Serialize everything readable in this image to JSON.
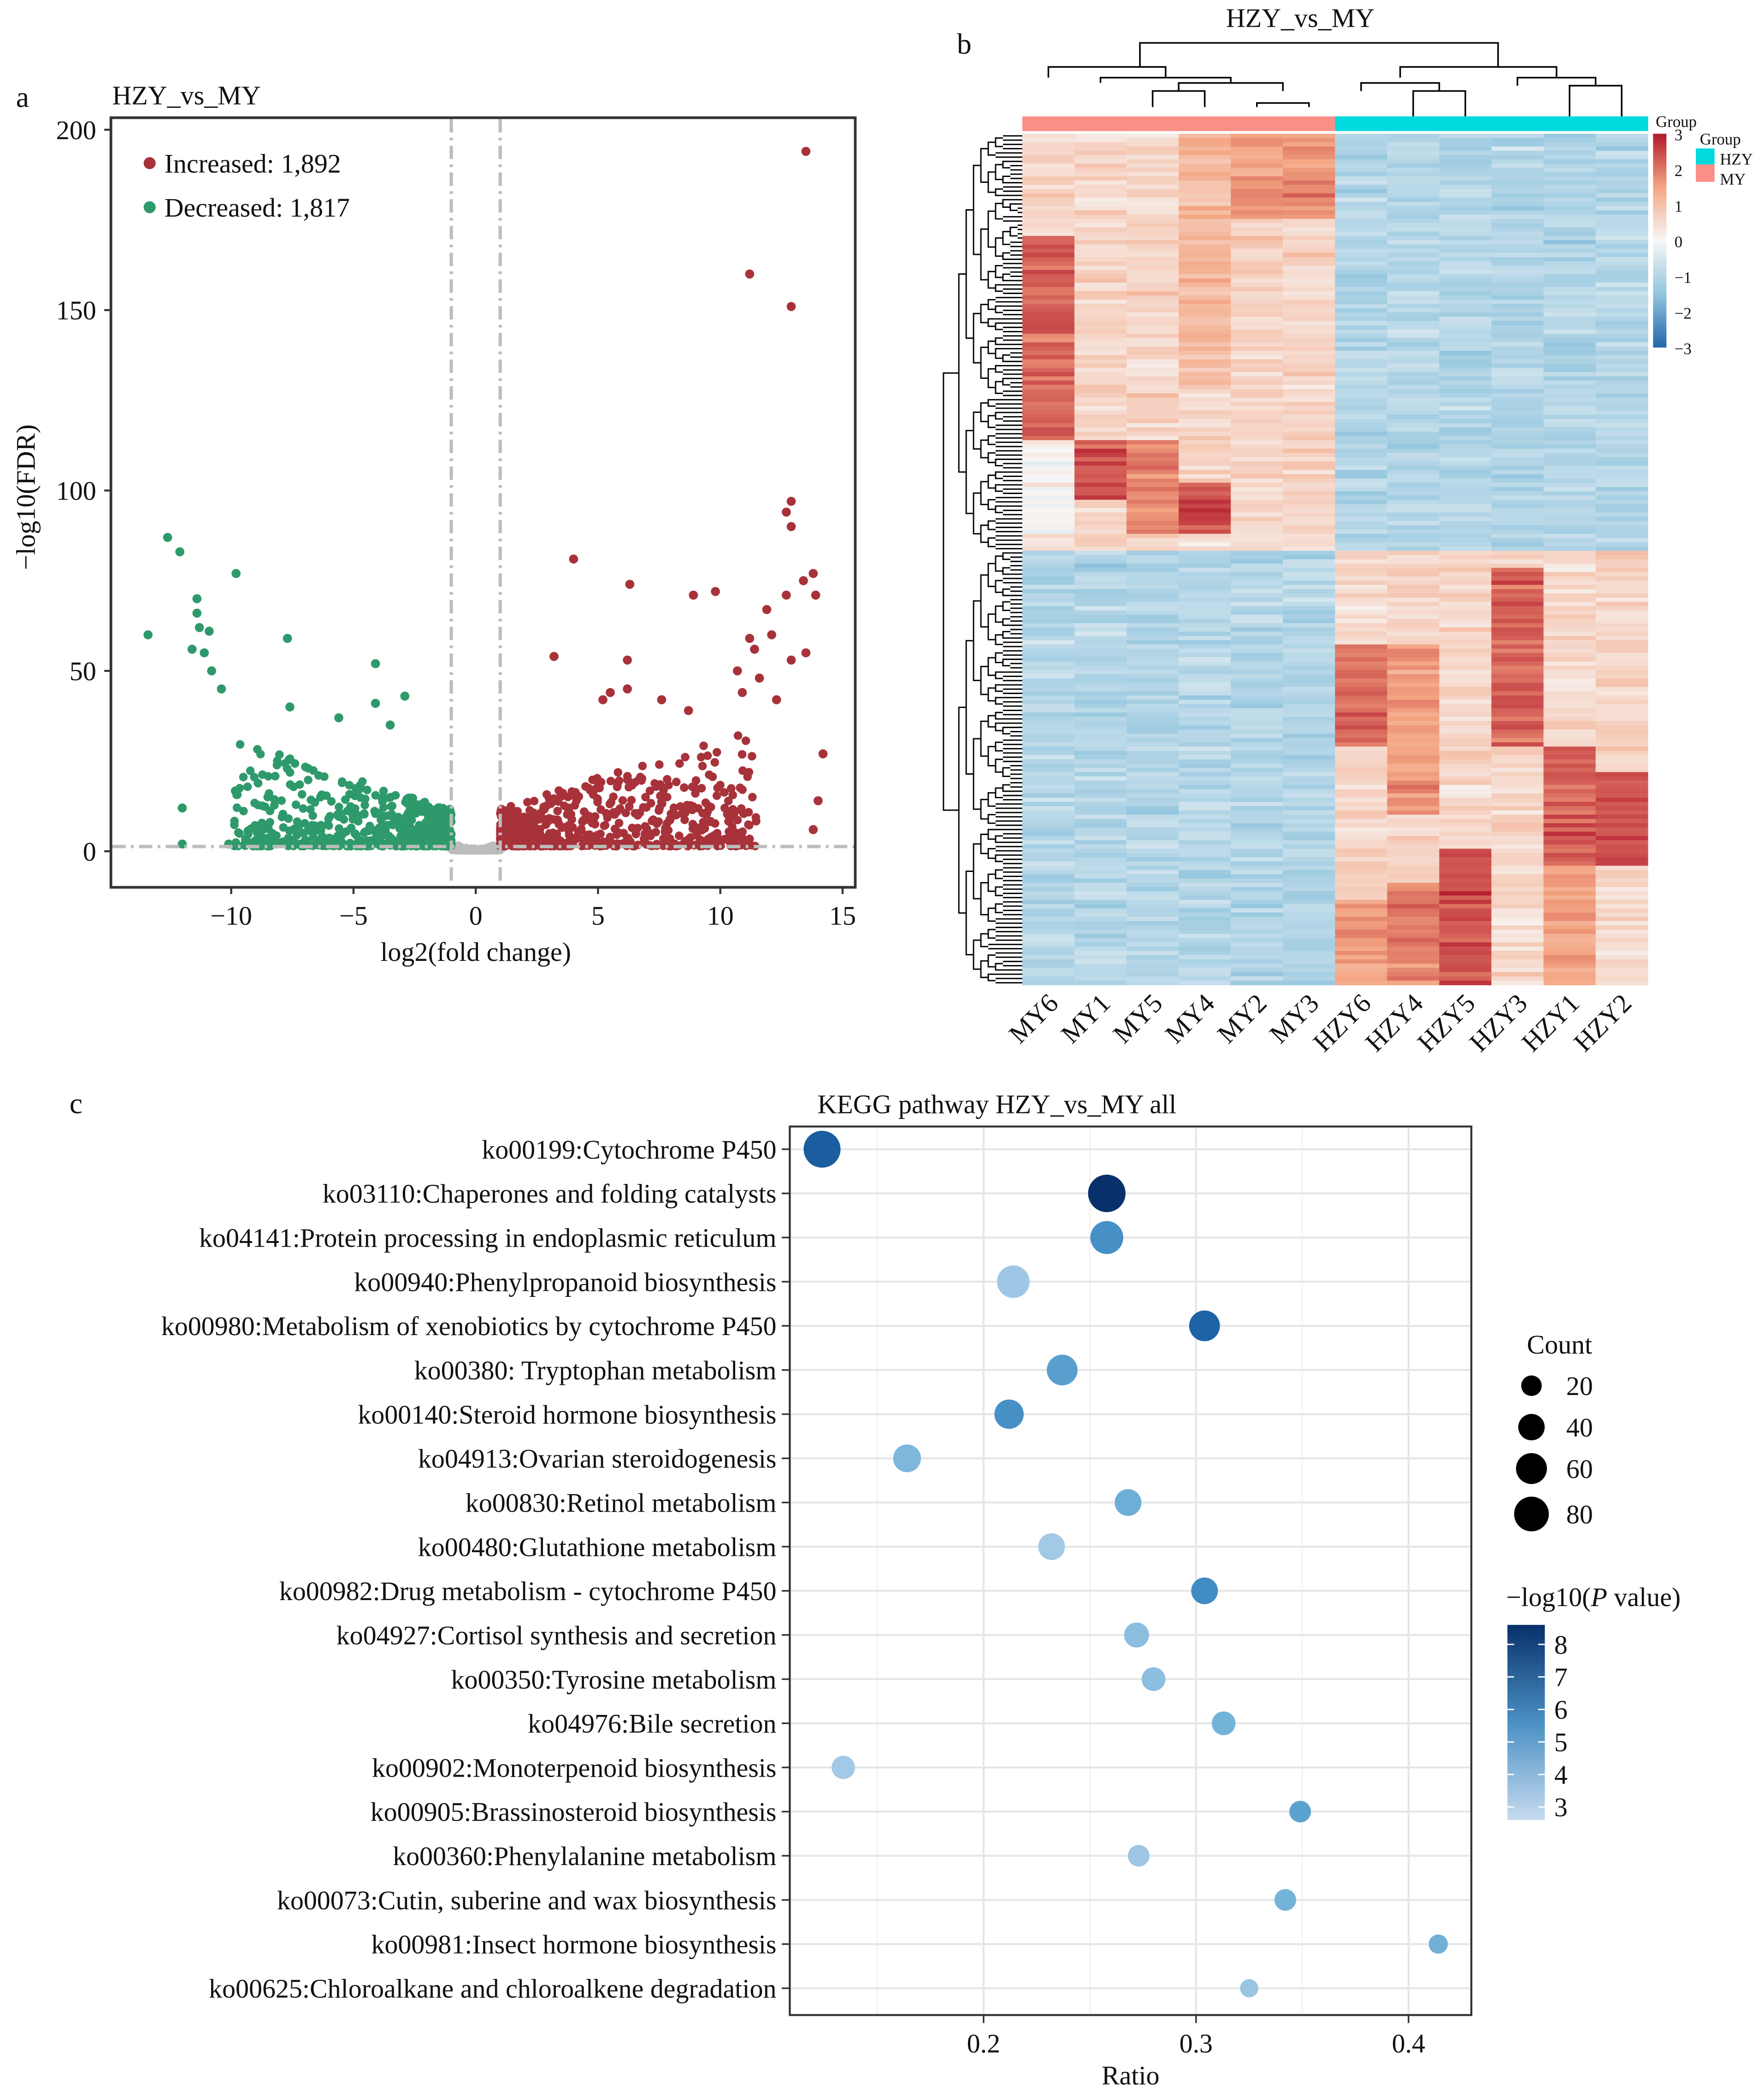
{
  "panel_labels": {
    "a": "a",
    "b": "b",
    "c": "c"
  },
  "chart_data": [
    {
      "type": "scatter",
      "id": "volcano",
      "title": "HZY_vs_MY",
      "xlabel": "log2(fold change)",
      "ylabel": "−log10(FDR)",
      "xlim": [
        -15,
        15.5
      ],
      "ylim": [
        -10,
        205
      ],
      "xticks": [
        -10,
        -5,
        0,
        5,
        10,
        15
      ],
      "xtick_labels": [
        "−10",
        "−5",
        "0",
        "5",
        "10",
        "15"
      ],
      "yticks": [
        0,
        50,
        100,
        150,
        200
      ],
      "ytick_labels": [
        "0",
        "50",
        "100",
        "150",
        "200"
      ],
      "thresholds": {
        "log2fc": [
          -1,
          1
        ],
        "neglog10_fdr": 1.3
      },
      "legend": [
        {
          "label": "Increased: 1,892",
          "color": "#a8323a"
        },
        {
          "label": "Decreased: 1,817",
          "color": "#2e9a6b"
        }
      ],
      "legend_position": "top-left",
      "counts": {
        "increased": 1892,
        "decreased": 1817
      },
      "colors": {
        "up": "#a8323a",
        "down": "#2e9a6b",
        "ns": "#bdbdbd",
        "threshold": "#bdbdbd"
      },
      "notable_points": {
        "increased": [
          [
            13.5,
            194
          ],
          [
            11.2,
            160
          ],
          [
            12.9,
            151
          ],
          [
            12.9,
            97
          ],
          [
            12.7,
            94
          ],
          [
            12.9,
            90
          ],
          [
            4,
            81
          ],
          [
            6.3,
            74
          ],
          [
            8.9,
            71
          ],
          [
            9.8,
            72
          ],
          [
            13.8,
            77
          ],
          [
            13.4,
            75
          ],
          [
            12.7,
            71
          ],
          [
            13.9,
            71
          ],
          [
            11.9,
            67
          ],
          [
            12.1,
            60
          ],
          [
            11.2,
            59
          ],
          [
            11.4,
            56
          ],
          [
            13.5,
            55
          ],
          [
            12.9,
            53
          ],
          [
            3.2,
            54
          ],
          [
            6.2,
            53
          ],
          [
            10.7,
            50
          ],
          [
            11.6,
            48
          ],
          [
            6.2,
            45
          ],
          [
            5.5,
            44
          ],
          [
            10.9,
            44
          ],
          [
            5.2,
            42
          ],
          [
            7.6,
            42
          ],
          [
            12.3,
            42
          ],
          [
            8.7,
            39
          ],
          [
            14.2,
            27
          ],
          [
            14,
            14
          ],
          [
            13.8,
            6
          ]
        ],
        "decreased": [
          [
            -12.6,
            87
          ],
          [
            -12.1,
            83
          ],
          [
            -9.8,
            77
          ],
          [
            -13.4,
            60
          ],
          [
            -7.7,
            59
          ],
          [
            -11.4,
            70
          ],
          [
            -11.4,
            66
          ],
          [
            -11.3,
            62
          ],
          [
            -10.9,
            61
          ],
          [
            -11.6,
            56
          ],
          [
            -11.1,
            55
          ],
          [
            -10.8,
            50
          ],
          [
            -4.1,
            52
          ],
          [
            -2.9,
            43
          ],
          [
            -10.4,
            45
          ],
          [
            -7.6,
            40
          ],
          [
            -4.1,
            41
          ],
          [
            -3.5,
            35
          ],
          [
            -5.6,
            37
          ],
          [
            -12,
            2
          ],
          [
            -12,
            12
          ],
          [
            -10.1,
            2
          ]
        ]
      }
    },
    {
      "type": "heatmap",
      "id": "heatmap",
      "title": "HZY_vs_MY",
      "columns": [
        "MY6",
        "MY1",
        "MY5",
        "MY4",
        "MY2",
        "MY3",
        "HZY6",
        "HZY4",
        "HZY5",
        "HZY3",
        "HZY1",
        "HZY2"
      ],
      "column_groups": [
        "MY",
        "MY",
        "MY",
        "MY",
        "MY",
        "MY",
        "HZY",
        "HZY",
        "HZY",
        "HZY",
        "HZY",
        "HZY"
      ],
      "color_scale": {
        "title": "Group",
        "ticks": [
          3,
          2,
          1,
          0,
          -1,
          -2,
          -3
        ],
        "tick_labels": [
          "3",
          "2",
          "1",
          "0",
          "−1",
          "−2",
          "−3"
        ],
        "range": [
          -3,
          3
        ],
        "colors": [
          "#2166ac",
          "#92c5de",
          "#f7f7f7",
          "#f4a582",
          "#b2182b"
        ]
      },
      "group_legend": {
        "title": "Group",
        "items": [
          {
            "label": "HZY",
            "color": "#00d9de"
          },
          {
            "label": "MY",
            "color": "#fa8f86"
          }
        ]
      },
      "row_clusters": [
        {
          "name": "up in MY",
          "fraction": 0.49,
          "mean_MY": 1.2,
          "mean_HZY": -1.1
        },
        {
          "name": "up in HZY",
          "fraction": 0.51,
          "mean_MY": -1.1,
          "mean_HZY": 1.0
        }
      ]
    },
    {
      "type": "scatter",
      "id": "kegg",
      "title": "KEGG pathway HZY_vs_MY all",
      "xlabel": "Ratio",
      "xlim": [
        0.115,
        0.43
      ],
      "xticks": [
        0.2,
        0.3,
        0.4
      ],
      "xtick_labels": [
        "0.2",
        "0.3",
        "0.4"
      ],
      "pathways": [
        {
          "term": "ko00199:Cytochrome P450",
          "ratio": 0.124,
          "count": 82,
          "neglog10p": 7.2
        },
        {
          "term": "ko03110:Chaperones and folding catalysts",
          "ratio": 0.258,
          "count": 85,
          "neglog10p": 8.6
        },
        {
          "term": "ko04141:Protein processing in endoplasmic reticulum",
          "ratio": 0.258,
          "count": 62,
          "neglog10p": 5.6
        },
        {
          "term": "ko00940:Phenylpropanoid biosynthesis",
          "ratio": 0.214,
          "count": 60,
          "neglog10p": 3.5
        },
        {
          "term": "ko00980:Metabolism of xenobiotics by cytochrome P450",
          "ratio": 0.304,
          "count": 52,
          "neglog10p": 7.0
        },
        {
          "term": "ko00380: Tryptophan metabolism",
          "ratio": 0.237,
          "count": 52,
          "neglog10p": 5.1
        },
        {
          "term": "ko00140:Steroid hormone biosynthesis",
          "ratio": 0.212,
          "count": 46,
          "neglog10p": 5.6
        },
        {
          "term": "ko04913:Ovarian steroidogenesis",
          "ratio": 0.164,
          "count": 40,
          "neglog10p": 4.2
        },
        {
          "term": "ko00830:Retinol metabolism",
          "ratio": 0.268,
          "count": 36,
          "neglog10p": 4.6
        },
        {
          "term": "ko00480:Glutathione metabolism",
          "ratio": 0.232,
          "count": 36,
          "neglog10p": 3.4
        },
        {
          "term": "ko00982:Drug metabolism - cytochrome P450",
          "ratio": 0.304,
          "count": 36,
          "neglog10p": 5.7
        },
        {
          "term": "ko04927:Cortisol synthesis and secretion",
          "ratio": 0.272,
          "count": 30,
          "neglog10p": 3.9
        },
        {
          "term": "ko00350:Tyrosine metabolism",
          "ratio": 0.28,
          "count": 26,
          "neglog10p": 3.9
        },
        {
          "term": "ko04976:Bile secretion",
          "ratio": 0.313,
          "count": 26,
          "neglog10p": 4.4
        },
        {
          "term": "ko00902:Monoterpenoid biosynthesis",
          "ratio": 0.134,
          "count": 25,
          "neglog10p": 3.4
        },
        {
          "term": "ko00905:Brassinosteroid biosynthesis",
          "ratio": 0.349,
          "count": 20,
          "neglog10p": 5.0
        },
        {
          "term": "ko00360:Phenylalanine metabolism",
          "ratio": 0.273,
          "count": 20,
          "neglog10p": 3.5
        },
        {
          "term": "ko00073:Cutin, suberine and wax biosynthesis",
          "ratio": 0.342,
          "count": 20,
          "neglog10p": 4.4
        },
        {
          "term": "ko00981:Insect hormone biosynthesis",
          "ratio": 0.414,
          "count": 14,
          "neglog10p": 4.5
        },
        {
          "term": "ko00625:Chloroalkane and chloroalkene degradation",
          "ratio": 0.325,
          "count": 12,
          "neglog10p": 3.6
        }
      ],
      "size_legend": {
        "title": "Count",
        "values": [
          20,
          40,
          60,
          80
        ],
        "labels": [
          "20",
          "40",
          "60",
          "80"
        ]
      },
      "color_legend": {
        "title_prefix": "−log10(",
        "title_italic": "P",
        "title_suffix": " value)",
        "ticks": [
          8,
          7,
          6,
          5,
          4,
          3
        ],
        "tick_labels": [
          "8",
          "7",
          "6",
          "5",
          "4",
          "3"
        ],
        "range": [
          2.6,
          8.6
        ],
        "colors": [
          "#c6dbef",
          "#08306b"
        ]
      },
      "legend_position": "right"
    }
  ]
}
